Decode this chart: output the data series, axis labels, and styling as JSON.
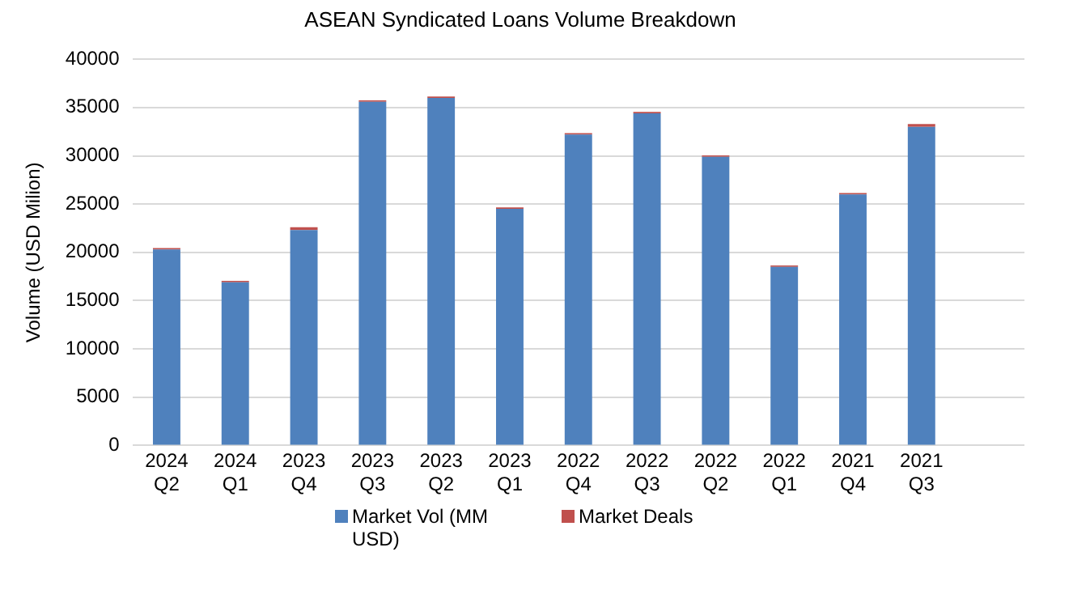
{
  "chart_data": {
    "type": "bar",
    "title": "ASEAN Syndicated Loans Volume Breakdown",
    "ylabel": "Volume (USD Milion)",
    "stacked": true,
    "categories": [
      "2024\nQ2",
      "2024\nQ1",
      "2023\nQ4",
      "2023\nQ3",
      "2023\nQ2",
      "2023\nQ1",
      "2022\nQ4",
      "2022\nQ3",
      "2022\nQ2",
      "2022\nQ1",
      "2021\nQ4",
      "2021\nQ3",
      null
    ],
    "series": [
      {
        "name": "Market Vol (MM USD)",
        "color": "#4f81bd",
        "values": [
          20300,
          16900,
          22300,
          35600,
          36000,
          24500,
          32200,
          34400,
          29900,
          18500,
          26000,
          33000,
          null
        ]
      },
      {
        "name": "Market Deals",
        "color": "#c0504d",
        "values": [
          150,
          150,
          300,
          150,
          150,
          150,
          150,
          150,
          150,
          150,
          150,
          300,
          null
        ]
      }
    ],
    "ylim": [
      0,
      40000
    ],
    "yticks": [
      0,
      5000,
      10000,
      15000,
      20000,
      25000,
      30000,
      35000,
      40000
    ],
    "grid": "y",
    "legend": "bottom"
  }
}
